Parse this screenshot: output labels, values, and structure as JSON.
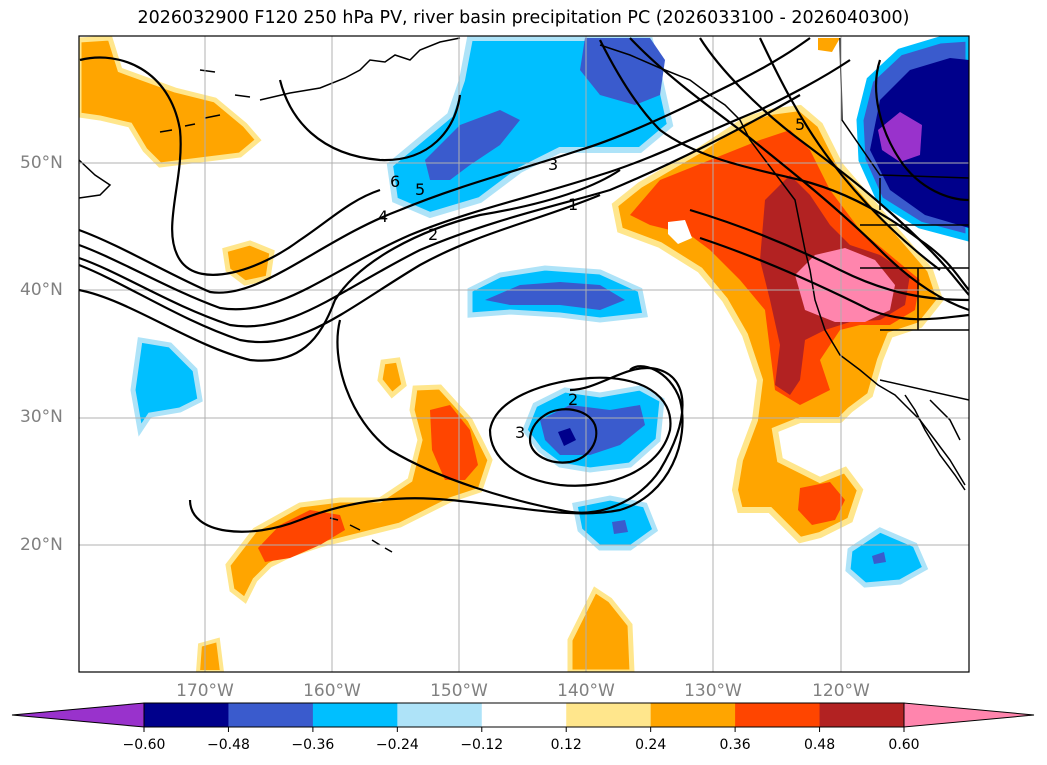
{
  "title": "2026032900 F120 250 hPa PV, river basin precipitation PC (2026033100 - 2026040300)",
  "map": {
    "lat_labels": [
      "50°N",
      "40°N",
      "30°N",
      "20°N"
    ],
    "lon_labels": [
      "170°W",
      "160°W",
      "150°W",
      "140°W",
      "130°W",
      "120°W"
    ],
    "contour_labels": [
      "6",
      "5",
      "4",
      "2",
      "1",
      "3",
      "2",
      "3",
      "5"
    ]
  },
  "colorbar": {
    "tick_labels": [
      "−0.60",
      "−0.48",
      "−0.36",
      "−0.24",
      "−0.12",
      "0.12",
      "0.24",
      "0.36",
      "0.48",
      "0.60"
    ],
    "colors": {
      "lt_-0.60": "#9932cc",
      "-0.60_-0.48": "#00008b",
      "-0.48_-0.36": "#3a5bcd",
      "-0.36_-0.24": "#00bfff",
      "-0.24_-0.12": "#aee3f8",
      "-0.12_0.12": "#ffffff",
      "0.12_0.24": "#ffe68c",
      "0.24_0.36": "#ffa500",
      "0.36_0.48": "#ff4500",
      "0.48_0.60": "#b22222",
      "gt_0.60": "#ff85ad"
    }
  }
}
